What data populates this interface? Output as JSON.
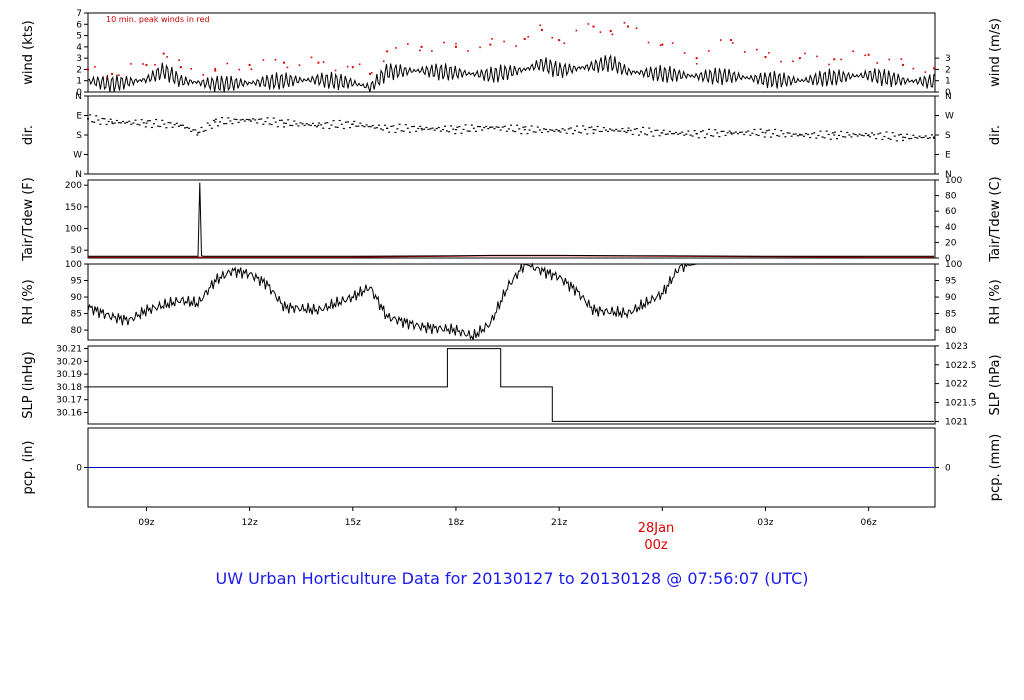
{
  "title": "UW Urban Horticulture Data for 20130127  to  20130128 @ 07:56:07  (UTC)",
  "annotation": "10 min. peak winds in red",
  "date_marker": {
    "date": "28Jan",
    "time": "00z"
  },
  "time_axis": {
    "start_hour": 7.3,
    "end_hour": 31.93,
    "ticks": [
      {
        "hour": 9,
        "label": "09z"
      },
      {
        "hour": 12,
        "label": "12z"
      },
      {
        "hour": 15,
        "label": "15z"
      },
      {
        "hour": 18,
        "label": "18z"
      },
      {
        "hour": 21,
        "label": "21z"
      },
      {
        "hour": 27,
        "label": "03z"
      },
      {
        "hour": 30,
        "label": "06z"
      }
    ]
  },
  "colors": {
    "series": "#000000",
    "peak": "#dd0000",
    "dewpoint": "#cc0000",
    "precip": "#0000cc",
    "title": "#1a1aee"
  },
  "chart_data": [
    {
      "type": "line",
      "name": "wind",
      "left_label": "wind (kts)",
      "right_label": "wind (m/s)",
      "ylim": [
        0,
        7
      ],
      "left_ticks": [
        "0",
        "1",
        "2",
        "3",
        "4",
        "5",
        "6",
        "7"
      ],
      "right_ticks": [
        {
          "v": 0,
          "t": "0"
        },
        {
          "v": 1,
          "t": "1"
        },
        {
          "v": 2,
          "t": "2"
        },
        {
          "v": 3,
          "t": "3"
        }
      ],
      "series": [
        {
          "role": "mean",
          "x": [
            7.3,
            8,
            9,
            9.5,
            10,
            11,
            12,
            13,
            14,
            15,
            15.5,
            16,
            17,
            18,
            19,
            20,
            20.5,
            21,
            22,
            22.5,
            23,
            24,
            25,
            26,
            27,
            28,
            29,
            30,
            31,
            31.9
          ],
          "values": [
            1.0,
            0.7,
            1.1,
            1.9,
            1.0,
            0.7,
            0.8,
            1.0,
            1.1,
            0.8,
            0.4,
            1.8,
            1.9,
            1.7,
            1.5,
            2.0,
            2.5,
            1.9,
            2.3,
            2.6,
            1.8,
            1.6,
            1.4,
            1.4,
            1.1,
            1.0,
            1.3,
            1.5,
            1.0,
            0.9
          ]
        },
        {
          "role": "peak",
          "x": [
            7.3,
            8,
            9,
            9.5,
            10,
            11,
            12,
            13,
            14,
            15,
            15.5,
            16,
            17,
            18,
            19,
            20,
            20.5,
            21,
            22,
            22.5,
            23,
            24,
            25,
            26,
            27,
            28,
            29,
            30,
            31,
            31.9
          ],
          "values": [
            2.0,
            1.6,
            2.4,
            3.4,
            2.2,
            1.9,
            2.4,
            2.6,
            2.6,
            2.2,
            1.6,
            3.6,
            4.0,
            4.0,
            4.2,
            4.7,
            5.5,
            4.6,
            5.8,
            5.4,
            5.8,
            4.2,
            3.0,
            4.6,
            3.1,
            3.0,
            2.9,
            3.3,
            2.4,
            2.1
          ]
        }
      ]
    },
    {
      "type": "scatter",
      "name": "direction",
      "left_label": "dir.",
      "right_label": "dir.",
      "ylim": [
        0,
        360
      ],
      "left_ticks": [
        "N",
        "E",
        "S",
        "W",
        "N"
      ],
      "right_ticks": [
        {
          "v": 0,
          "t": "N"
        },
        {
          "v": 90,
          "t": "E"
        },
        {
          "v": 180,
          "t": "S"
        },
        {
          "v": 270,
          "t": "W"
        },
        {
          "v": 360,
          "t": "N"
        }
      ],
      "x": [
        7.3,
        8,
        9,
        10,
        10.5,
        11,
        12,
        13,
        14,
        15,
        16,
        17,
        18,
        19,
        20,
        21,
        22,
        23,
        24,
        25,
        26,
        27,
        28,
        29,
        30,
        31,
        31.9
      ],
      "values": [
        255,
        240,
        235,
        225,
        190,
        240,
        250,
        235,
        225,
        230,
        210,
        210,
        205,
        215,
        205,
        200,
        205,
        200,
        190,
        185,
        190,
        190,
        180,
        180,
        180,
        170,
        170
      ]
    },
    {
      "type": "line",
      "name": "temperature",
      "left_label": "Tair/Tdew (F)",
      "right_label": "Tair/Tdew (C)",
      "ylim": [
        32,
        212
      ],
      "left_ticks": [
        "50",
        "100",
        "150",
        "200"
      ],
      "right_ticks": [
        {
          "v": 0,
          "t": "0"
        },
        {
          "v": 20,
          "t": "20"
        },
        {
          "v": 40,
          "t": "40"
        },
        {
          "v": 60,
          "t": "60"
        },
        {
          "v": 80,
          "t": "80"
        },
        {
          "v": 100,
          "t": "100"
        }
      ],
      "series": [
        {
          "role": "air",
          "x": [
            7.3,
            10.5,
            10.55,
            10.6,
            10.65,
            10.7,
            15,
            18,
            19,
            21,
            24,
            27,
            30,
            31.9
          ],
          "values": [
            36,
            36,
            206,
            38,
            36,
            36,
            36,
            37,
            38,
            38,
            37,
            36,
            36,
            36
          ]
        },
        {
          "role": "dew",
          "x": [
            7.3,
            10.5,
            15,
            18,
            19,
            21,
            24,
            27,
            30,
            31.9
          ],
          "values": [
            34,
            34,
            34,
            36,
            37,
            37,
            36,
            35,
            34,
            34
          ]
        }
      ]
    },
    {
      "type": "line",
      "name": "relative humidity",
      "left_label": "RH (%)",
      "right_label": "RH (%)",
      "ylim": [
        77,
        100
      ],
      "left_ticks": [
        "80",
        "85",
        "90",
        "95",
        "100"
      ],
      "right_ticks": [
        {
          "v": 80,
          "t": "80"
        },
        {
          "v": 85,
          "t": "85"
        },
        {
          "v": 90,
          "t": "90"
        },
        {
          "v": 95,
          "t": "95"
        },
        {
          "v": 100,
          "t": "100"
        }
      ],
      "x": [
        7.3,
        8,
        8.5,
        9,
        10,
        10.5,
        11,
        11.5,
        12,
        12.5,
        13,
        14,
        15,
        15.5,
        16,
        17,
        18,
        18.5,
        19,
        19.5,
        20,
        21,
        21.5,
        22,
        23,
        23.5,
        24,
        24.5,
        25,
        26,
        27,
        28,
        29,
        30,
        31,
        31.9
      ],
      "values": [
        87,
        84,
        83,
        86,
        89,
        88,
        95,
        98,
        97,
        94,
        87,
        86,
        90,
        93,
        84,
        81,
        80,
        78,
        82,
        93,
        100,
        96,
        92,
        86,
        85,
        88,
        91,
        99,
        100,
        100,
        100,
        100,
        100,
        100,
        100,
        100
      ]
    },
    {
      "type": "line",
      "name": "sea level pressure",
      "left_label": "SLP (inHg)",
      "right_label": "SLP (hPa)",
      "ylim": [
        30.151,
        30.212
      ],
      "left_ticks": [
        "30.16",
        "30.17",
        "30.18",
        "30.19",
        "30.20",
        "30.21"
      ],
      "right_ticks": [
        {
          "v": 30.153,
          "t": "1021"
        },
        {
          "v": 30.1678,
          "t": "1021.5"
        },
        {
          "v": 30.1826,
          "t": "1022"
        },
        {
          "v": 30.1973,
          "t": "1022.5"
        },
        {
          "v": 30.2121,
          "t": "1023"
        }
      ],
      "x": [
        7.3,
        17.75,
        17.75,
        19.3,
        19.3,
        20.8,
        20.8,
        31.9
      ],
      "values": [
        30.18,
        30.18,
        30.21,
        30.21,
        30.18,
        30.18,
        30.153,
        30.153
      ]
    },
    {
      "type": "line",
      "name": "precipitation",
      "left_label": "pcp. (in)",
      "right_label": "pcp. (mm)",
      "ylim": [
        -1,
        1
      ],
      "left_ticks": [
        "0"
      ],
      "right_ticks": [
        {
          "v": 0,
          "t": "0"
        }
      ],
      "x": [
        7.3,
        31.9
      ],
      "values": [
        0,
        0
      ]
    }
  ]
}
